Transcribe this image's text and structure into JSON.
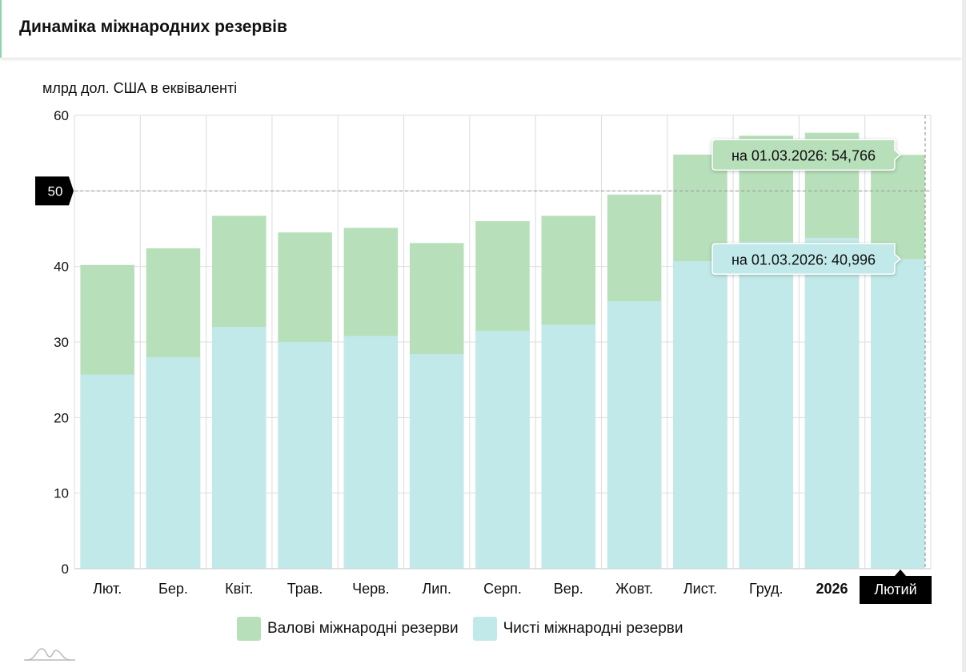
{
  "header": {
    "title": "Динаміка міжнародних резервів"
  },
  "chart_data": {
    "type": "bar",
    "stacked": false,
    "overlapped": true,
    "title": "Динаміка міжнародних резервів",
    "ylabel": "млрд дол. США в еквіваленті",
    "xlabel": "",
    "ylim": [
      0,
      60
    ],
    "yticks": [
      0,
      10,
      20,
      30,
      40,
      50,
      60
    ],
    "grid": true,
    "legend_position": "bottom",
    "categories": [
      "Лют.",
      "Бер.",
      "Квіт.",
      "Трав.",
      "Черв.",
      "Лип.",
      "Серп.",
      "Вер.",
      "Жовт.",
      "Лист.",
      "Груд.",
      "2026",
      "Лютий"
    ],
    "bold_categories": [
      "2026"
    ],
    "series": [
      {
        "name": "Валові міжнародні резерви",
        "color": "#b7dfba",
        "values": [
          40.2,
          42.4,
          46.7,
          44.5,
          45.1,
          43.1,
          46.0,
          46.7,
          49.5,
          54.8,
          57.3,
          57.7,
          54.766
        ]
      },
      {
        "name": "Чисті міжнародні резерви",
        "color": "#c2e9e9",
        "values": [
          25.7,
          28.0,
          32.0,
          30.0,
          30.8,
          28.4,
          31.5,
          32.3,
          35.4,
          40.7,
          43.3,
          43.8,
          40.996
        ]
      }
    ],
    "crosshair": {
      "y_value_label": "50",
      "y_value": 50,
      "x_category_label": "Лютий"
    },
    "tooltips": [
      {
        "series": "Валові міжнародні резерви",
        "text": "на 01.03.2026: 54,766"
      },
      {
        "series": "Чисті міжнародні резерви",
        "text": "на 01.03.2026: 40,996"
      }
    ]
  },
  "legend": [
    {
      "label": "Валові міжнародні резерви",
      "color": "#b7dfba"
    },
    {
      "label": "Чисті міжнародні резерви",
      "color": "#c2e9e9"
    }
  ]
}
